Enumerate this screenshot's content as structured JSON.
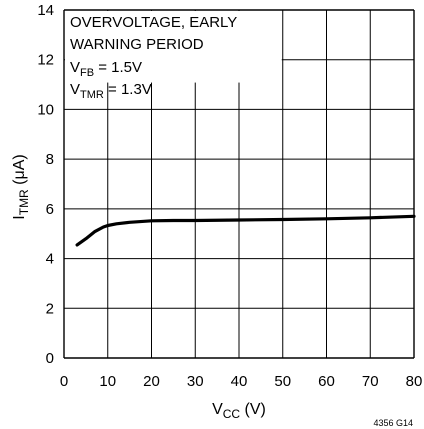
{
  "chart_data": {
    "type": "line",
    "annotation": {
      "line1": "OVERVOLTAGE, EARLY",
      "line2": "WARNING PERIOD",
      "vfb_main": "V",
      "vfb_sub": "FB",
      "vfb_rest": " = 1.5V",
      "vtmr_main": "V",
      "vtmr_sub": "TMR",
      "vtmr_rest": " = 1.3V"
    },
    "xlabel": {
      "main": "V",
      "sub": "CC",
      "rest": " (V)"
    },
    "ylabel": {
      "main": "I",
      "sub": "TMR",
      "rest": " (μA)"
    },
    "figure_id": "4356 G14",
    "xlim": [
      0,
      80
    ],
    "ylim": [
      0,
      14
    ],
    "xticks": [
      0,
      10,
      20,
      30,
      40,
      50,
      60,
      70,
      80
    ],
    "yticks": [
      0,
      2,
      4,
      6,
      8,
      10,
      12,
      14
    ],
    "grid": true,
    "series": [
      {
        "x": [
          3,
          5,
          7,
          9,
          10,
          12,
          15,
          20,
          25,
          30,
          40,
          50,
          60,
          70,
          80
        ],
        "y": [
          4.55,
          4.8,
          5.08,
          5.27,
          5.33,
          5.4,
          5.46,
          5.52,
          5.53,
          5.53,
          5.55,
          5.57,
          5.6,
          5.64,
          5.7
        ]
      }
    ]
  }
}
